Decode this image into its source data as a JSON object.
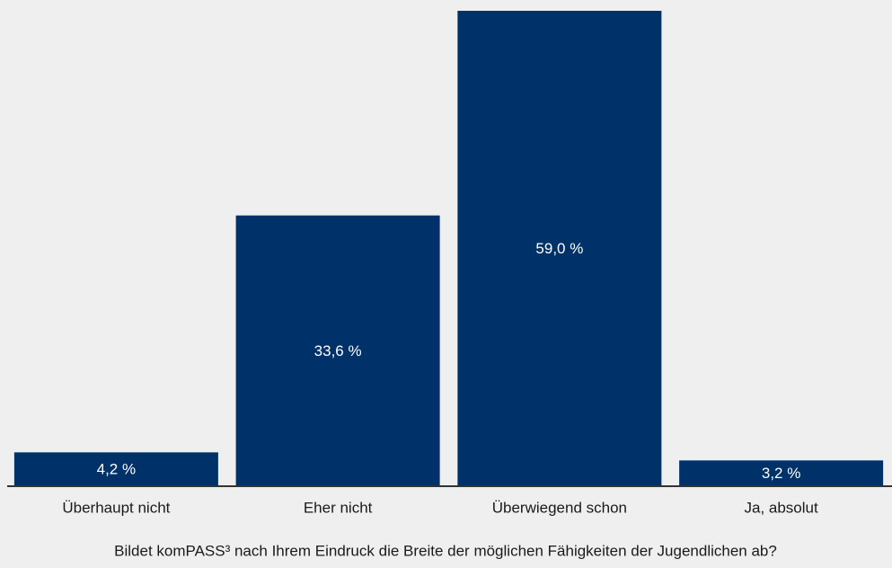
{
  "chart_data": {
    "type": "bar",
    "x_label": "Bildet komPASS³ nach Ihrem Eindruck die Breite der möglichen Fähigkeiten der Jugendlichen ab?",
    "categories": [
      "Überhaupt nicht",
      "Eher nicht",
      "Überwiegend schon",
      "Ja, absolut"
    ],
    "values": [
      4.2,
      33.6,
      59.0,
      3.2
    ],
    "value_labels": [
      "4,2 %",
      "33,6 %",
      "59,0 %",
      "3,2 %"
    ],
    "color": "#003168",
    "ylim": [
      0,
      59
    ]
  }
}
